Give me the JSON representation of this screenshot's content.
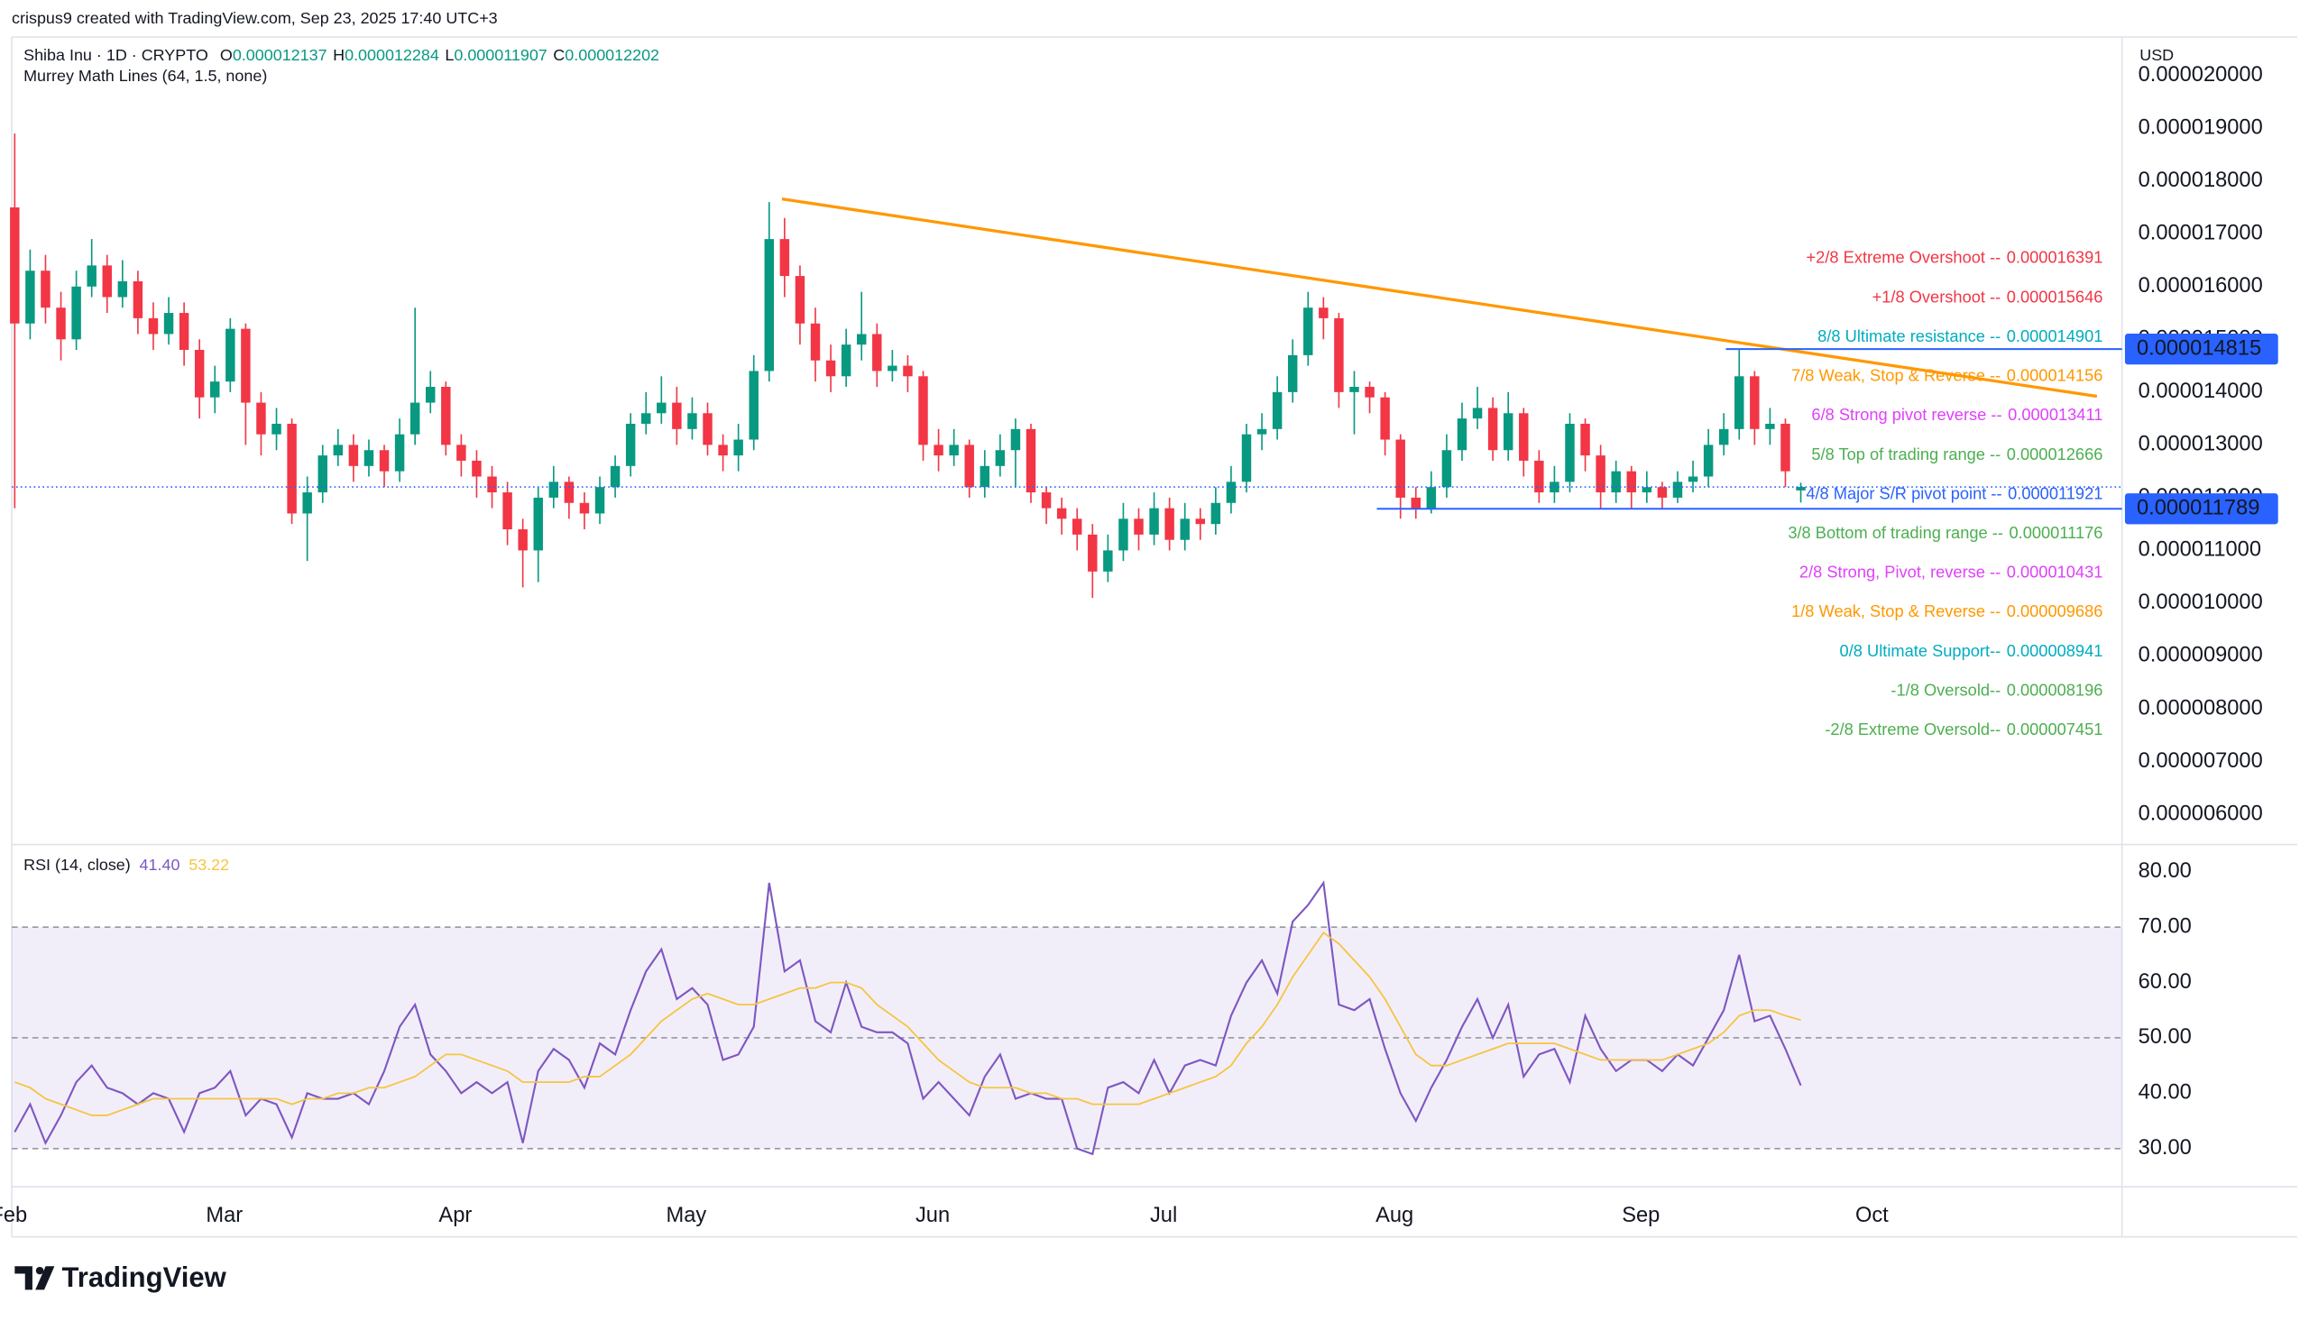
{
  "header": {
    "credit": "crispus9 created with TradingView.com, Sep 23, 2025 17:40 UTC+3",
    "symbol": "Shiba Inu · 1D · CRYPTO",
    "ohlc_letters": [
      "O",
      "H",
      "L",
      "C"
    ],
    "indicator": "Murrey Math Lines (64, 1.5, none)",
    "currency": "USD",
    "logo": "TradingView"
  },
  "chart_data": {
    "type": "candlestick",
    "categories": [
      "Feb",
      null,
      null,
      null,
      null,
      null,
      null,
      null,
      null,
      null,
      null,
      null,
      null,
      null,
      "Mar",
      null,
      null,
      null,
      null,
      null,
      null,
      null,
      null,
      null,
      null,
      null,
      null,
      null,
      null,
      "Apr",
      null,
      null,
      null,
      null,
      null,
      null,
      null,
      null,
      null,
      null,
      null,
      null,
      null,
      null,
      "May",
      null,
      null,
      null,
      null,
      null,
      null,
      null,
      null,
      null,
      null,
      null,
      null,
      null,
      null,
      null,
      "Jun",
      null,
      null,
      null,
      null,
      null,
      null,
      null,
      null,
      null,
      null,
      null,
      null,
      null,
      null,
      "Jul",
      null,
      null,
      null,
      null,
      null,
      null,
      null,
      null,
      null,
      null,
      null,
      null,
      null,
      null,
      "Aug",
      null,
      null,
      null,
      null,
      null,
      null,
      null,
      null,
      null,
      null,
      null,
      null,
      null,
      null,
      null,
      "Sep",
      null,
      null,
      null,
      null,
      null,
      null,
      null,
      null,
      null,
      null,
      null,
      null,
      null,
      null,
      "Oct",
      null,
      null,
      null,
      null,
      null,
      null,
      null,
      null,
      null,
      null,
      null,
      null,
      null,
      null,
      null
    ],
    "open": [
      1.75e-05,
      1.53e-05,
      1.63e-05,
      1.56e-05,
      1.5e-05,
      1.6e-05,
      1.64e-05,
      1.58e-05,
      1.61e-05,
      1.54e-05,
      1.51e-05,
      1.55e-05,
      1.48e-05,
      1.39e-05,
      1.42e-05,
      1.52e-05,
      1.38e-05,
      1.32e-05,
      1.34e-05,
      1.17e-05,
      1.21e-05,
      1.28e-05,
      1.3e-05,
      1.26e-05,
      1.29e-05,
      1.25e-05,
      1.32e-05,
      1.38e-05,
      1.41e-05,
      1.3e-05,
      1.27e-05,
      1.24e-05,
      1.21e-05,
      1.14e-05,
      1.1e-05,
      1.2e-05,
      1.23e-05,
      1.19e-05,
      1.17e-05,
      1.22e-05,
      1.26e-05,
      1.34e-05,
      1.36e-05,
      1.38e-05,
      1.33e-05,
      1.36e-05,
      1.3e-05,
      1.28e-05,
      1.31e-05,
      1.44e-05,
      1.69e-05,
      1.62e-05,
      1.53e-05,
      1.46e-05,
      1.43e-05,
      1.49e-05,
      1.51e-05,
      1.44e-05,
      1.45e-05,
      1.43e-05,
      1.3e-05,
      1.28e-05,
      1.3e-05,
      1.22e-05,
      1.26e-05,
      1.29e-05,
      1.33e-05,
      1.21e-05,
      1.18e-05,
      1.16e-05,
      1.13e-05,
      1.06e-05,
      1.1e-05,
      1.16e-05,
      1.13e-05,
      1.18e-05,
      1.12e-05,
      1.16e-05,
      1.15e-05,
      1.19e-05,
      1.23e-05,
      1.32e-05,
      1.33e-05,
      1.4e-05,
      1.47e-05,
      1.56e-05,
      1.54e-05,
      1.4e-05,
      1.41e-05,
      1.39e-05,
      1.31e-05,
      1.2e-05,
      1.18e-05,
      1.22e-05,
      1.29e-05,
      1.35e-05,
      1.37e-05,
      1.29e-05,
      1.36e-05,
      1.27e-05,
      1.21e-05,
      1.23e-05,
      1.34e-05,
      1.28e-05,
      1.21e-05,
      1.25e-05,
      1.21e-05,
      1.22e-05,
      1.2e-05,
      1.23e-05,
      1.24e-05,
      1.3e-05,
      1.33e-05,
      1.43e-05,
      1.33e-05,
      1.34e-05,
      1.2137e-05,
      null,
      null,
      null,
      null,
      null,
      null,
      null,
      null,
      null,
      null,
      null,
      null,
      null,
      null,
      null,
      null,
      null,
      null,
      null,
      null
    ],
    "high": [
      1.89e-05,
      1.67e-05,
      1.66e-05,
      1.59e-05,
      1.63e-05,
      1.69e-05,
      1.66e-05,
      1.65e-05,
      1.63e-05,
      1.57e-05,
      1.58e-05,
      1.57e-05,
      1.5e-05,
      1.45e-05,
      1.54e-05,
      1.53e-05,
      1.4e-05,
      1.37e-05,
      1.35e-05,
      1.24e-05,
      1.3e-05,
      1.33e-05,
      1.32e-05,
      1.31e-05,
      1.3e-05,
      1.35e-05,
      1.56e-05,
      1.44e-05,
      1.42e-05,
      1.32e-05,
      1.29e-05,
      1.26e-05,
      1.23e-05,
      1.16e-05,
      1.22e-05,
      1.26e-05,
      1.24e-05,
      1.21e-05,
      1.24e-05,
      1.28e-05,
      1.36e-05,
      1.4e-05,
      1.43e-05,
      1.41e-05,
      1.39e-05,
      1.38e-05,
      1.32e-05,
      1.34e-05,
      1.47e-05,
      1.76e-05,
      1.73e-05,
      1.64e-05,
      1.56e-05,
      1.49e-05,
      1.52e-05,
      1.59e-05,
      1.53e-05,
      1.48e-05,
      1.47e-05,
      1.44e-05,
      1.33e-05,
      1.33e-05,
      1.31e-05,
      1.29e-05,
      1.32e-05,
      1.35e-05,
      1.34e-05,
      1.22e-05,
      1.2e-05,
      1.18e-05,
      1.15e-05,
      1.13e-05,
      1.19e-05,
      1.18e-05,
      1.21e-05,
      1.2e-05,
      1.19e-05,
      1.18e-05,
      1.22e-05,
      1.26e-05,
      1.34e-05,
      1.36e-05,
      1.43e-05,
      1.5e-05,
      1.59e-05,
      1.58e-05,
      1.55e-05,
      1.44e-05,
      1.42e-05,
      1.4e-05,
      1.32e-05,
      1.22e-05,
      1.25e-05,
      1.32e-05,
      1.38e-05,
      1.41e-05,
      1.39e-05,
      1.4e-05,
      1.37e-05,
      1.29e-05,
      1.26e-05,
      1.36e-05,
      1.35e-05,
      1.3e-05,
      1.27e-05,
      1.26e-05,
      1.25e-05,
      1.23e-05,
      1.25e-05,
      1.27e-05,
      1.33e-05,
      1.36e-05,
      1.48e-05,
      1.44e-05,
      1.37e-05,
      1.35e-05,
      1.2284e-05,
      null,
      null,
      null,
      null,
      null,
      null,
      null,
      null,
      null,
      null,
      null,
      null,
      null,
      null,
      null,
      null,
      null,
      null,
      null,
      null
    ],
    "low": [
      1.18e-05,
      1.5e-05,
      1.53e-05,
      1.46e-05,
      1.48e-05,
      1.58e-05,
      1.55e-05,
      1.56e-05,
      1.51e-05,
      1.48e-05,
      1.49e-05,
      1.45e-05,
      1.35e-05,
      1.36e-05,
      1.4e-05,
      1.3e-05,
      1.28e-05,
      1.29e-05,
      1.15e-05,
      1.08e-05,
      1.19e-05,
      1.26e-05,
      1.23e-05,
      1.24e-05,
      1.22e-05,
      1.23e-05,
      1.3e-05,
      1.36e-05,
      1.28e-05,
      1.24e-05,
      1.2e-05,
      1.18e-05,
      1.11e-05,
      1.03e-05,
      1.04e-05,
      1.18e-05,
      1.16e-05,
      1.14e-05,
      1.15e-05,
      1.2e-05,
      1.24e-05,
      1.32e-05,
      1.34e-05,
      1.3e-05,
      1.31e-05,
      1.28e-05,
      1.25e-05,
      1.25e-05,
      1.29e-05,
      1.42e-05,
      1.58e-05,
      1.49e-05,
      1.42e-05,
      1.4e-05,
      1.41e-05,
      1.46e-05,
      1.41e-05,
      1.42e-05,
      1.4e-05,
      1.27e-05,
      1.25e-05,
      1.26e-05,
      1.2e-05,
      1.2e-05,
      1.24e-05,
      1.22e-05,
      1.19e-05,
      1.15e-05,
      1.13e-05,
      1.1e-05,
      1.01e-05,
      1.04e-05,
      1.08e-05,
      1.1e-05,
      1.11e-05,
      1.1e-05,
      1.1e-05,
      1.12e-05,
      1.13e-05,
      1.17e-05,
      1.21e-05,
      1.29e-05,
      1.31e-05,
      1.38e-05,
      1.45e-05,
      1.5e-05,
      1.37e-05,
      1.32e-05,
      1.36e-05,
      1.28e-05,
      1.16e-05,
      1.16e-05,
      1.17e-05,
      1.2e-05,
      1.27e-05,
      1.33e-05,
      1.27e-05,
      1.27e-05,
      1.24e-05,
      1.19e-05,
      1.19e-05,
      1.21e-05,
      1.25e-05,
      1.18e-05,
      1.19e-05,
      1.18e-05,
      1.19e-05,
      1.18e-05,
      1.19e-05,
      1.21e-05,
      1.22e-05,
      1.28e-05,
      1.31e-05,
      1.3e-05,
      1.3e-05,
      1.22e-05,
      1.1907e-05,
      null,
      null,
      null,
      null,
      null,
      null,
      null,
      null,
      null,
      null,
      null,
      null,
      null,
      null,
      null,
      null,
      null,
      null,
      null,
      null
    ],
    "close": [
      1.53e-05,
      1.63e-05,
      1.56e-05,
      1.5e-05,
      1.6e-05,
      1.64e-05,
      1.58e-05,
      1.61e-05,
      1.54e-05,
      1.51e-05,
      1.55e-05,
      1.48e-05,
      1.39e-05,
      1.42e-05,
      1.52e-05,
      1.38e-05,
      1.32e-05,
      1.34e-05,
      1.17e-05,
      1.21e-05,
      1.28e-05,
      1.3e-05,
      1.26e-05,
      1.29e-05,
      1.25e-05,
      1.32e-05,
      1.38e-05,
      1.41e-05,
      1.3e-05,
      1.27e-05,
      1.24e-05,
      1.21e-05,
      1.14e-05,
      1.1e-05,
      1.2e-05,
      1.23e-05,
      1.19e-05,
      1.17e-05,
      1.22e-05,
      1.26e-05,
      1.34e-05,
      1.36e-05,
      1.38e-05,
      1.33e-05,
      1.36e-05,
      1.3e-05,
      1.28e-05,
      1.31e-05,
      1.44e-05,
      1.69e-05,
      1.62e-05,
      1.53e-05,
      1.46e-05,
      1.43e-05,
      1.49e-05,
      1.51e-05,
      1.44e-05,
      1.45e-05,
      1.43e-05,
      1.3e-05,
      1.28e-05,
      1.3e-05,
      1.22e-05,
      1.26e-05,
      1.29e-05,
      1.33e-05,
      1.21e-05,
      1.18e-05,
      1.16e-05,
      1.13e-05,
      1.06e-05,
      1.1e-05,
      1.16e-05,
      1.13e-05,
      1.18e-05,
      1.12e-05,
      1.16e-05,
      1.15e-05,
      1.19e-05,
      1.23e-05,
      1.32e-05,
      1.33e-05,
      1.4e-05,
      1.47e-05,
      1.56e-05,
      1.54e-05,
      1.4e-05,
      1.41e-05,
      1.39e-05,
      1.31e-05,
      1.2e-05,
      1.18e-05,
      1.22e-05,
      1.29e-05,
      1.35e-05,
      1.37e-05,
      1.29e-05,
      1.36e-05,
      1.27e-05,
      1.21e-05,
      1.23e-05,
      1.34e-05,
      1.28e-05,
      1.21e-05,
      1.25e-05,
      1.21e-05,
      1.22e-05,
      1.2e-05,
      1.23e-05,
      1.24e-05,
      1.3e-05,
      1.33e-05,
      1.43e-05,
      1.33e-05,
      1.34e-05,
      1.25e-05,
      1.2202e-05,
      null,
      null,
      null,
      null,
      null,
      null,
      null,
      null,
      null,
      null,
      null,
      null,
      null,
      null,
      null,
      null,
      null,
      null,
      null,
      null
    ],
    "up_color": "#089981",
    "down_color": "#f23645",
    "last_price_color": "#2962ff",
    "grid": false,
    "ylim": [
      5.47e-06,
      2.0729e-05
    ],
    "yticks": [
      {
        "value": 6e-06,
        "label": "0.000006000"
      },
      {
        "value": 7e-06,
        "label": "0.000007000"
      },
      {
        "value": 8e-06,
        "label": "0.000008000"
      },
      {
        "value": 9e-06,
        "label": "0.000009000"
      },
      {
        "value": 1e-05,
        "label": "0.000010000"
      },
      {
        "value": 1.1e-05,
        "label": "0.000011000"
      },
      {
        "value": 1.2e-05,
        "label": "0.000012000"
      },
      {
        "value": 1.3e-05,
        "label": "0.000013000"
      },
      {
        "value": 1.4e-05,
        "label": "0.000014000"
      },
      {
        "value": 1.5e-05,
        "label": "0.000015000"
      },
      {
        "value": 1.6e-05,
        "label": "0.000016000"
      },
      {
        "value": 1.7e-05,
        "label": "0.000017000"
      },
      {
        "value": 1.8e-05,
        "label": "0.000018000"
      },
      {
        "value": 1.9e-05,
        "label": "0.000019000"
      },
      {
        "value": 2e-05,
        "label": "0.000020000"
      }
    ],
    "murrey_lines": [
      {
        "label": "+2/8 Extreme Overshoot --",
        "value": 1.6391e-05,
        "color": "#f23645"
      },
      {
        "label": "+1/8 Overshoot --",
        "value": 1.5646e-05,
        "color": "#f23645"
      },
      {
        "label": "8/8 Ultimate resistance --",
        "value": 1.4901e-05,
        "color": "#00acc1"
      },
      {
        "label": "7/8 Weak, Stop & Reverse --",
        "value": 1.4156e-05,
        "color": "#ff9800"
      },
      {
        "label": "6/8 Strong pivot reverse --",
        "value": 1.3411e-05,
        "color": "#e040fb"
      },
      {
        "label": "5/8 Top of trading range --",
        "value": 1.2666e-05,
        "color": "#4caf50"
      },
      {
        "label": "4/8 Major S/R pivot point --",
        "value": 1.1921e-05,
        "color": "#2962ff"
      },
      {
        "label": "3/8 Bottom of trading range --",
        "value": 1.1176e-05,
        "color": "#4caf50"
      },
      {
        "label": "2/8 Strong, Pivot, reverse --",
        "value": 1.0431e-05,
        "color": "#e040fb"
      },
      {
        "label": "1/8 Weak, Stop & Reverse --",
        "value": 9.686e-06,
        "color": "#ff9800"
      },
      {
        "label": "0/8 Ultimate Support--",
        "value": 8.941e-06,
        "color": "#00acc1"
      },
      {
        "label": "-1/8 Oversold--",
        "value": 8.196e-06,
        "color": "#4caf50"
      },
      {
        "label": "-2/8 Extreme Oversold--",
        "value": 7.451e-06,
        "color": "#4caf50"
      }
    ],
    "price_lines": [
      {
        "value": 1.4815e-05,
        "color": "#2962ff"
      },
      {
        "value": 1.1789e-05,
        "color": "#2962ff"
      }
    ],
    "trendline": {
      "color": "#ff9800",
      "values": [
        1.766e-05,
        1.392e-05
      ]
    },
    "indicator": {
      "title": "RSI (14, close)",
      "value_labels": [
        "41.40",
        "53.22"
      ],
      "ylim": [
        23.1,
        84
      ],
      "yticks": [
        {
          "value": 30,
          "label": "30.00"
        },
        {
          "value": 40,
          "label": "40.00"
        },
        {
          "value": 50,
          "label": "50.00"
        },
        {
          "value": 60,
          "label": "60.00"
        },
        {
          "value": 70,
          "label": "70.00"
        },
        {
          "value": 80,
          "label": "80.00"
        }
      ],
      "band_lines": [
        30,
        50,
        70
      ],
      "band_fill": [
        30,
        70
      ],
      "band_color": "#7e57c2",
      "series": [
        {
          "color": "#7e57c2",
          "values": [
            33,
            38,
            31,
            36,
            42,
            45,
            41,
            40,
            38,
            40,
            39,
            33,
            40,
            41,
            44,
            36,
            39,
            38,
            32,
            40,
            39,
            39,
            40,
            38,
            44,
            52,
            56,
            47,
            44,
            40,
            42,
            40,
            42,
            31,
            44,
            48,
            46,
            41,
            49,
            47,
            55,
            62,
            66,
            57,
            59,
            56,
            46,
            47,
            52,
            78,
            62,
            64,
            53,
            51,
            60,
            52,
            51,
            51,
            49,
            39,
            42,
            39,
            36,
            43,
            47,
            39,
            40,
            39,
            39,
            30,
            29,
            41,
            42,
            40,
            46,
            40,
            45,
            46,
            45,
            54,
            60,
            64,
            58,
            71,
            74,
            78,
            56,
            55,
            57,
            48,
            40,
            35,
            41,
            46,
            52,
            57,
            50,
            56,
            43,
            47,
            48,
            42,
            54,
            48,
            44,
            46,
            46,
            44,
            47,
            45,
            50,
            55,
            65,
            53,
            54,
            48,
            41.4,
            null,
            null,
            null,
            null,
            null,
            null,
            null,
            null,
            null,
            null,
            null,
            null,
            null,
            null,
            null,
            null,
            null,
            null,
            null,
            null
          ]
        },
        {
          "color": "#f5c542",
          "values": [
            42,
            41,
            39,
            38,
            37,
            36,
            36,
            37,
            38,
            39,
            39,
            39,
            39,
            39,
            39,
            39,
            39,
            39,
            38,
            39,
            39,
            40,
            40,
            41,
            41,
            42,
            43,
            45,
            47,
            47,
            46,
            45,
            44,
            42,
            42,
            42,
            42,
            43,
            43,
            45,
            47,
            50,
            53,
            55,
            57,
            58,
            57,
            56,
            56,
            57,
            58,
            59,
            59,
            60,
            60,
            59,
            56,
            54,
            52,
            49,
            46,
            44,
            42,
            41,
            41,
            41,
            40,
            40,
            39,
            39,
            38,
            38,
            38,
            38,
            39,
            40,
            41,
            42,
            43,
            45,
            49,
            52,
            56,
            61,
            65,
            69,
            67,
            64,
            61,
            57,
            52,
            47,
            45,
            45,
            46,
            47,
            48,
            49,
            49,
            49,
            49,
            48,
            47,
            46,
            46,
            46,
            46,
            46,
            47,
            48,
            49,
            51,
            54,
            55,
            55,
            54,
            53.22,
            null,
            null,
            null,
            null,
            null,
            null,
            null,
            null,
            null,
            null,
            null,
            null,
            null,
            null,
            null,
            null,
            null,
            null,
            null,
            null
          ]
        }
      ]
    }
  }
}
